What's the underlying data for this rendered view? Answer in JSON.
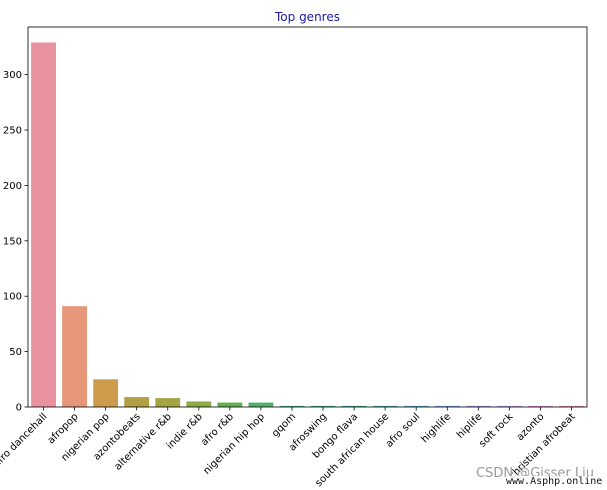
{
  "chart_data": {
    "type": "bar",
    "title": "Top genres",
    "xlabel": "",
    "ylabel": "",
    "ylim": [
      0,
      343
    ],
    "yticks": [
      0,
      50,
      100,
      150,
      200,
      250,
      300
    ],
    "grid": false,
    "legend": "none",
    "categories": [
      "afro dancehall",
      "afropop",
      "nigerian pop",
      "azontobeats",
      "alternative r&b",
      "indie r&b",
      "afro r&b",
      "nigerian hip hop",
      "gqom",
      "afroswing",
      "bongo flava",
      "south african house",
      "afro soul",
      "highlife",
      "hiplife",
      "soft rock",
      "azonto",
      "christian afrobeat"
    ],
    "values": [
      329,
      91,
      25,
      9,
      8,
      5,
      4,
      4,
      1,
      1,
      1,
      1,
      1,
      1,
      1,
      1,
      1,
      1
    ],
    "colors": [
      "#e8919f",
      "#e6977a",
      "#cc9c4c",
      "#b39f45",
      "#a4a442",
      "#8aad45",
      "#5fb04f",
      "#52b06b",
      "#4aae8a",
      "#48ac98",
      "#4aa9a6",
      "#4ca8b3",
      "#52a8c6",
      "#7aa6de",
      "#a29ee6",
      "#c496e2",
      "#dd8fd7",
      "#e68db3"
    ]
  },
  "watermark": {
    "line1": "CSDN @Gisser Liu",
    "line2": "www.Asphp.online"
  }
}
